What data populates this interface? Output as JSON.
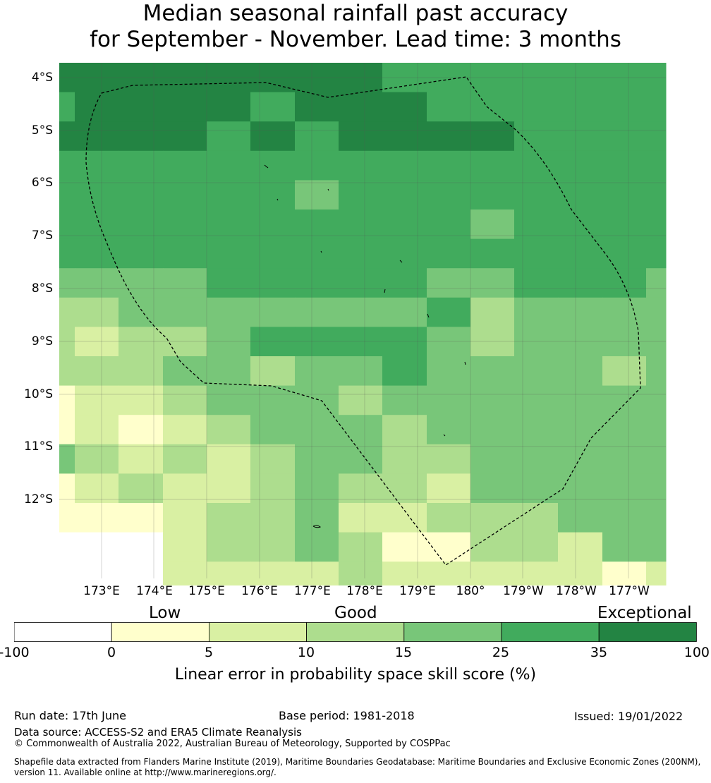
{
  "title_line1": "Median seasonal rainfall past accuracy",
  "title_line2": "for September - November. Lead time: 3 months",
  "map": {
    "lat_labels": [
      "4°S",
      "5°S",
      "6°S",
      "7°S",
      "8°S",
      "9°S",
      "10°S",
      "11°S",
      "12°S"
    ],
    "lon_labels": [
      "173°E",
      "174°E",
      "175°E",
      "176°E",
      "177°E",
      "178°E",
      "179°E",
      "180°",
      "179°W",
      "178°W",
      "177°W"
    ],
    "colors": [
      "#ffffff",
      "#ffffcc",
      "#d9f0a3",
      "#addd8e",
      "#78c679",
      "#41ab5d",
      "#238443"
    ],
    "grid_columns_east_edges": [
      172.5,
      172.8,
      173.6,
      174.4,
      175.2,
      176.0,
      176.8,
      177.6,
      178.4,
      179.2,
      180.0,
      180.8,
      181.6,
      182.4,
      183.2,
      183.8
    ],
    "grid_rows": "lat bands of 0.55 deg from 3.75S to 13.75S",
    "cells": [
      [
        6,
        6,
        6,
        6,
        6,
        6,
        6,
        6,
        5,
        5,
        5,
        5,
        5,
        5,
        5
      ],
      [
        5,
        6,
        6,
        6,
        6,
        5,
        6,
        6,
        6,
        5,
        5,
        5,
        5,
        5,
        5
      ],
      [
        6,
        6,
        6,
        6,
        5,
        6,
        5,
        6,
        6,
        6,
        6,
        5,
        5,
        5,
        5
      ],
      [
        5,
        5,
        5,
        5,
        5,
        5,
        5,
        5,
        5,
        5,
        5,
        5,
        5,
        5,
        5
      ],
      [
        5,
        5,
        5,
        5,
        5,
        5,
        4,
        5,
        5,
        5,
        5,
        5,
        5,
        5,
        5
      ],
      [
        5,
        5,
        5,
        5,
        5,
        5,
        5,
        5,
        5,
        5,
        4,
        5,
        5,
        5,
        5
      ],
      [
        5,
        5,
        5,
        5,
        5,
        5,
        5,
        5,
        5,
        5,
        5,
        5,
        5,
        5,
        5
      ],
      [
        4,
        4,
        4,
        4,
        5,
        5,
        5,
        5,
        5,
        4,
        4,
        5,
        5,
        5,
        4
      ],
      [
        3,
        3,
        4,
        4,
        4,
        4,
        4,
        4,
        4,
        5,
        3,
        4,
        4,
        4,
        4
      ],
      [
        3,
        2,
        3,
        3,
        4,
        5,
        5,
        5,
        5,
        4,
        3,
        4,
        4,
        4,
        4
      ],
      [
        3,
        3,
        3,
        4,
        4,
        3,
        4,
        4,
        5,
        4,
        4,
        4,
        4,
        3,
        4
      ],
      [
        1,
        2,
        2,
        3,
        4,
        4,
        4,
        3,
        4,
        4,
        4,
        4,
        4,
        4,
        4
      ],
      [
        1,
        2,
        1,
        2,
        3,
        4,
        4,
        4,
        3,
        4,
        4,
        4,
        4,
        4,
        4
      ],
      [
        4,
        3,
        2,
        3,
        2,
        3,
        4,
        4,
        3,
        3,
        4,
        4,
        4,
        4,
        4
      ],
      [
        1,
        2,
        3,
        2,
        2,
        3,
        4,
        3,
        3,
        2,
        4,
        4,
        4,
        4,
        4
      ],
      [
        1,
        1,
        1,
        2,
        3,
        3,
        4,
        2,
        2,
        3,
        3,
        3,
        4,
        4,
        4
      ],
      [
        0,
        0,
        0,
        2,
        3,
        3,
        4,
        3,
        1,
        1,
        3,
        3,
        2,
        4,
        4
      ],
      [
        0,
        0,
        0,
        2,
        2,
        2,
        2,
        3,
        2,
        2,
        2,
        2,
        2,
        1,
        2
      ]
    ]
  },
  "categories": {
    "low": "Low",
    "good": "Good",
    "exceptional": "Exceptional"
  },
  "colorbar": {
    "ticks": [
      "-100",
      "0",
      "5",
      "10",
      "15",
      "25",
      "35",
      "100"
    ],
    "colors": [
      "#ffffff",
      "#ffffcc",
      "#d9f0a3",
      "#addd8e",
      "#78c679",
      "#41ab5d",
      "#238443"
    ],
    "label": "Linear error in probability space skill score (%)"
  },
  "footer": {
    "run_date": "Run date: 17th June",
    "base_period": "Base period: 1981-2018",
    "issued": "Issued: 19/01/2022",
    "data_source": "Data source: ACCESS-S2 and ERA5 Climate Reanalysis",
    "copyright": "© Commonwealth of Australia 2022, Australian Bureau of Meteorology, Supported by COSPPac",
    "shapefile_line1": "Shapefile data extracted from Flanders Marine Institute (2019), Maritime Boundaries Geodatabase: Maritime Boundaries and Exclusive Economic Zones (200NM),",
    "shapefile_line2": "version 11. Available online at http://www.marineregions.org/."
  }
}
